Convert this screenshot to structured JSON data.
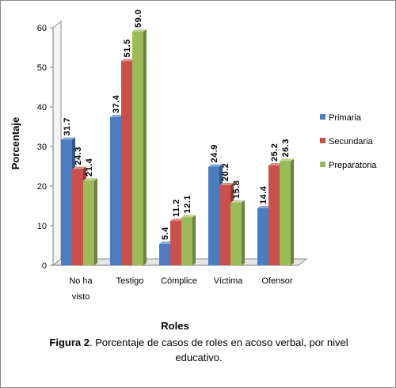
{
  "chart_data": {
    "type": "bar",
    "categories": [
      [
        "No ha",
        "visto"
      ],
      [
        "Testigo"
      ],
      [
        "Cómplice"
      ],
      [
        "Víctima"
      ],
      [
        "Ofensor"
      ]
    ],
    "series": [
      {
        "name": "Primaria",
        "color": "#4a7cc1",
        "values": [
          31.7,
          37.4,
          5.4,
          24.9,
          14.4
        ],
        "labels": [
          "31.7",
          "37.4",
          "5.4",
          "24.9",
          "14.4"
        ]
      },
      {
        "name": "Secundaria",
        "color": "#c9504b",
        "values": [
          24.3,
          51.5,
          11.2,
          20.2,
          25.2
        ],
        "labels": [
          "24.3",
          "51.5",
          "11.2",
          "20.2",
          "25.2"
        ]
      },
      {
        "name": "Preparatoria",
        "color": "#9bbb59",
        "values": [
          21.4,
          59.0,
          12.1,
          15.8,
          26.3
        ],
        "labels": [
          "21.4",
          "59.0",
          "12.1",
          "15.8",
          "26.3"
        ]
      }
    ],
    "xlabel": "Roles",
    "ylabel": "Porcentaje",
    "ylim": [
      0,
      60
    ],
    "yticks": [
      "0",
      "10",
      "20",
      "30",
      "40",
      "50",
      "60"
    ],
    "grid": false,
    "legend_position": "right",
    "style": "3d-clustered"
  },
  "caption": {
    "figure_label": "Figura 2",
    "text": ". Porcentaje de casos de roles en acoso verbal, por nivel educativo."
  }
}
